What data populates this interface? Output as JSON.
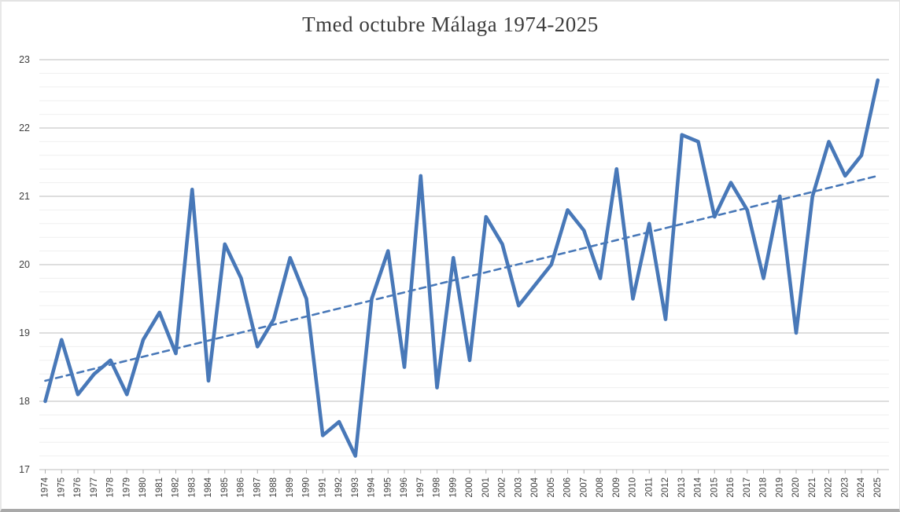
{
  "chart_data": {
    "type": "line",
    "title": "Tmed octubre Málaga 1974-2025",
    "xlabel": "",
    "ylabel": "",
    "x": [
      "1974",
      "1975",
      "1976",
      "1977",
      "1978",
      "1979",
      "1980",
      "1981",
      "1982",
      "1983",
      "1984",
      "1985",
      "1986",
      "1987",
      "1988",
      "1989",
      "1990",
      "1991",
      "1992",
      "1993",
      "1994",
      "1995",
      "1996",
      "1997",
      "1998",
      "1999",
      "2000",
      "2001",
      "2002",
      "2003",
      "2004",
      "2005",
      "2006",
      "2007",
      "2008",
      "2009",
      "2010",
      "2011",
      "2012",
      "2013",
      "2014",
      "2015",
      "2016",
      "2017",
      "2018",
      "2019",
      "2020",
      "2021",
      "2022",
      "2023",
      "2024",
      "2025"
    ],
    "series": [
      {
        "name": "Tmed octubre",
        "values": [
          18.0,
          18.9,
          18.1,
          18.4,
          18.6,
          18.1,
          18.9,
          19.3,
          18.7,
          21.1,
          18.3,
          20.3,
          19.8,
          18.8,
          19.2,
          20.1,
          19.5,
          17.5,
          17.7,
          17.2,
          19.5,
          20.2,
          18.5,
          21.3,
          18.2,
          20.1,
          18.6,
          20.7,
          20.3,
          19.4,
          19.7,
          20.0,
          20.8,
          20.5,
          19.8,
          21.4,
          19.5,
          20.6,
          19.2,
          21.9,
          21.8,
          20.7,
          21.2,
          20.8,
          19.8,
          21.0,
          19.0,
          21.0,
          21.8,
          21.3,
          21.6,
          22.7
        ]
      }
    ],
    "trendline": {
      "name": "linear-trend",
      "style": "dashed",
      "start_value": 18.3,
      "end_value": 21.3
    },
    "ylim": [
      17,
      23
    ],
    "ytick_step": 1,
    "yminor_step": 0.2,
    "yticks": [
      "17",
      "18",
      "19",
      "20",
      "21",
      "22",
      "23"
    ],
    "grid": "horizontal",
    "legend_position": "none",
    "colors": {
      "line": "#4878B8",
      "trend": "#4878B8",
      "major_grid": "#bdbdbd",
      "minor_grid": "#efefef",
      "tick": "#b0b0b0",
      "label": "#3f3f3f",
      "title": "#3c3c3c",
      "background": "#ffffff"
    }
  }
}
